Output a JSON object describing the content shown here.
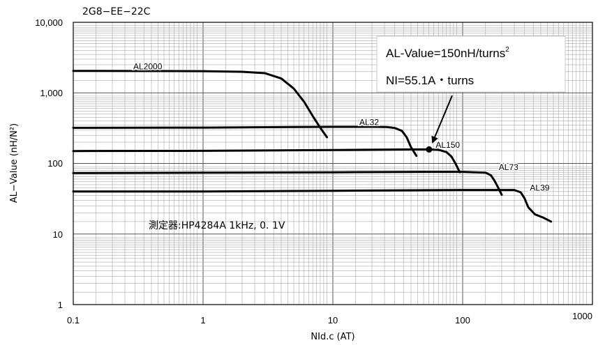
{
  "chart_data": {
    "type": "line",
    "title": "2G8−EE−22C",
    "xlabel": "NId.c (AT)",
    "ylabel": "AL−Value (nH/N²)",
    "x_scale": "log",
    "y_scale": "log",
    "xlim": [
      0.1,
      1000
    ],
    "ylim": [
      1,
      10000
    ],
    "x_ticks": [
      "0.1",
      "1",
      "10",
      "100",
      "1000"
    ],
    "y_ticks": [
      "10,000",
      "1,000",
      "100",
      "10",
      "1"
    ],
    "grid": true,
    "measurement_note": "測定器:HP4284A 1kHz, 0. 1V",
    "series": [
      {
        "name": "AL2000",
        "points": [
          [
            0.1,
            2050
          ],
          [
            1,
            2030
          ],
          [
            2,
            1990
          ],
          [
            3,
            1900
          ],
          [
            4,
            1600
          ],
          [
            5,
            1150
          ],
          [
            6,
            750
          ],
          [
            7,
            470
          ],
          [
            8,
            320
          ],
          [
            9,
            235
          ]
        ]
      },
      {
        "name": "AL32",
        "points": [
          [
            0.1,
            320
          ],
          [
            1,
            322
          ],
          [
            5,
            328
          ],
          [
            10,
            330
          ],
          [
            20,
            330
          ],
          [
            26,
            328
          ],
          [
            30,
            318
          ],
          [
            34,
            290
          ],
          [
            37,
            235
          ],
          [
            40,
            170
          ],
          [
            44,
            128
          ]
        ]
      },
      {
        "name": "AL150",
        "points": [
          [
            0.1,
            150
          ],
          [
            1,
            151
          ],
          [
            10,
            155
          ],
          [
            40,
            158
          ],
          [
            55.1,
            158
          ],
          [
            65,
            156
          ],
          [
            75,
            145
          ],
          [
            82,
            125
          ],
          [
            88,
            100
          ],
          [
            95,
            75
          ]
        ]
      },
      {
        "name": "AL73",
        "points": [
          [
            0.1,
            73
          ],
          [
            1,
            74
          ],
          [
            10,
            75
          ],
          [
            50,
            76
          ],
          [
            100,
            76
          ],
          [
            150,
            74
          ],
          [
            165,
            68
          ],
          [
            175,
            58
          ],
          [
            185,
            48
          ],
          [
            200,
            36
          ]
        ]
      },
      {
        "name": "AL39",
        "points": [
          [
            0.1,
            40
          ],
          [
            1,
            40
          ],
          [
            10,
            41
          ],
          [
            100,
            42
          ],
          [
            250,
            42
          ],
          [
            280,
            39
          ],
          [
            300,
            32
          ],
          [
            320,
            24
          ],
          [
            360,
            19
          ],
          [
            420,
            17
          ],
          [
            480,
            15
          ]
        ]
      }
    ],
    "annotation": {
      "lines": [
        "AL-Value=150nH/turns",
        "NI=55.1A・turns"
      ],
      "superscript": "2",
      "marker": {
        "x": 55.1,
        "y": 158
      }
    }
  }
}
